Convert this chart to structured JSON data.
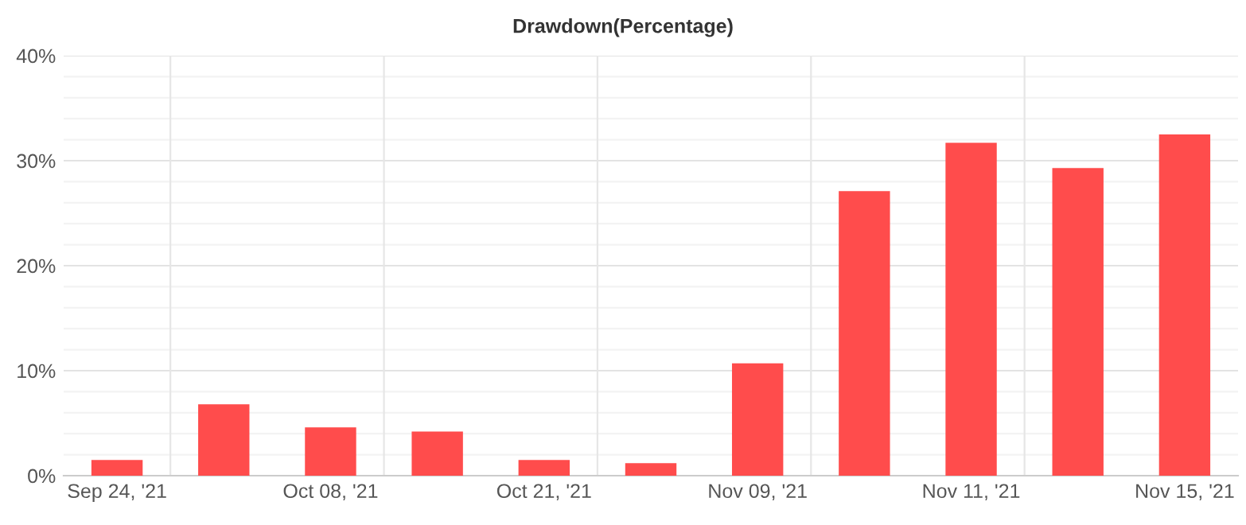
{
  "chart_data": {
    "type": "bar",
    "title": "Drawdown(Percentage)",
    "categories": [
      "Sep 24, '21",
      null,
      "Oct 08, '21",
      null,
      "Oct 21, '21",
      null,
      "Nov 09, '21",
      null,
      "Nov 11, '21",
      null,
      "Nov 15, '21"
    ],
    "series": [
      {
        "color": "#ff4c4c",
        "values": [
          1.5,
          6.8,
          4.6,
          4.2,
          1.5,
          1.2,
          10.7,
          27.1,
          31.7,
          29.3,
          32.5
        ]
      }
    ],
    "ylim": [
      0,
      40
    ],
    "yticks": [
      {
        "value": 0,
        "label": "0%"
      },
      {
        "value": 2,
        "label": null
      },
      {
        "value": 4,
        "label": null
      },
      {
        "value": 6,
        "label": null
      },
      {
        "value": 8,
        "label": null
      },
      {
        "value": 10,
        "label": "10%"
      },
      {
        "value": 12,
        "label": null
      },
      {
        "value": 14,
        "label": null
      },
      {
        "value": 16,
        "label": null
      },
      {
        "value": 18,
        "label": null
      },
      {
        "value": 20,
        "label": "20%"
      },
      {
        "value": 22,
        "label": null
      },
      {
        "value": 24,
        "label": null
      },
      {
        "value": 26,
        "label": null
      },
      {
        "value": 28,
        "label": null
      },
      {
        "value": 30,
        "label": "30%"
      },
      {
        "value": 32,
        "label": null
      },
      {
        "value": 34,
        "label": null
      },
      {
        "value": 36,
        "label": null
      },
      {
        "value": 38,
        "label": null
      },
      {
        "value": 40,
        "label": "40%"
      }
    ],
    "grid": true,
    "legend": false
  }
}
